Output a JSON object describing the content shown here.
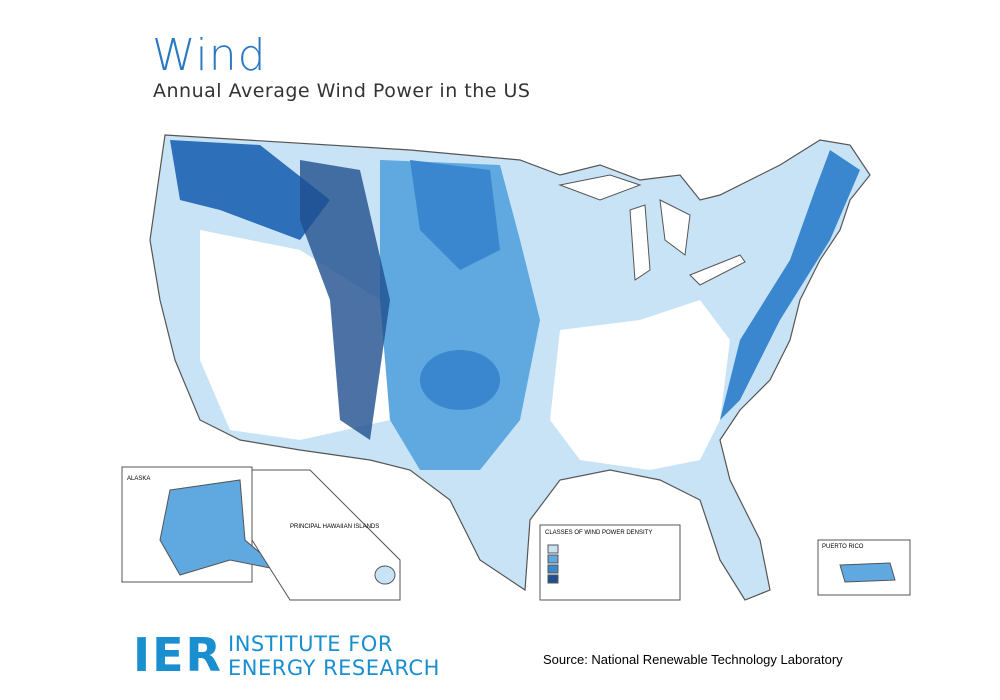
{
  "header": {
    "title": "Wind",
    "subtitle": "Annual Average Wind Power in the US"
  },
  "map": {
    "insets": [
      "ALASKA",
      "PRINCIPAL HAWAIIAN ISLANDS",
      "PUERTO RICO"
    ],
    "legend_title": "CLASSES OF WIND POWER DENSITY"
  },
  "footer": {
    "logo": "IER",
    "logo_line1": "INSTITUTE FOR",
    "logo_line2": "ENERGY RESEARCH",
    "source": "Source: National Renewable Technology Laboratory"
  }
}
